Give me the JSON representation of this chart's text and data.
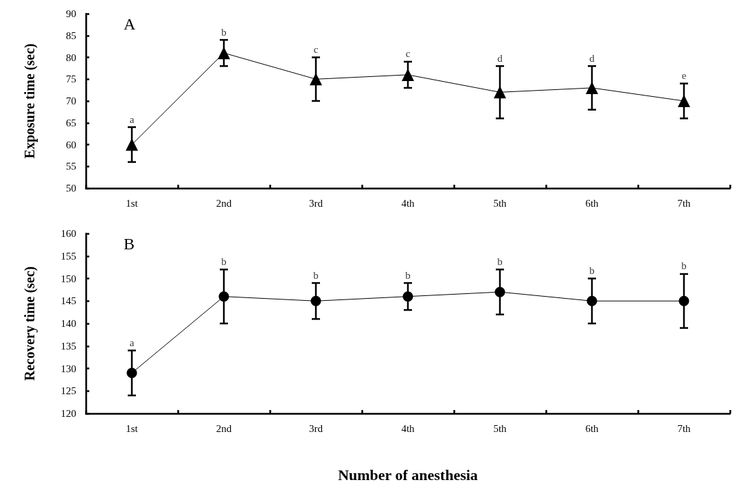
{
  "chart_data": [
    {
      "type": "line",
      "title": "A",
      "ylabel": "Exposure time (sec)",
      "categories": [
        "1st",
        "2nd",
        "3rd",
        "4th",
        "5th",
        "6th",
        "7th"
      ],
      "series": [
        {
          "color": "#000000",
          "values": [
            60,
            81,
            75,
            76,
            72,
            73,
            70
          ],
          "errors": [
            [
              56,
              64
            ],
            [
              78,
              84
            ],
            [
              70,
              80
            ],
            [
              73,
              79
            ],
            [
              66,
              78
            ],
            [
              68,
              78
            ],
            [
              66,
              74
            ]
          ]
        }
      ],
      "ylim": [
        50,
        90
      ],
      "yticks": [
        50,
        55,
        60,
        65,
        70,
        75,
        80,
        85,
        90
      ],
      "marker": "triangle",
      "line_style": "solid",
      "grid": false,
      "annotations": [
        {
          "text": "a",
          "x": "1st",
          "y": 64
        },
        {
          "text": "b",
          "x": "2nd",
          "y": 84
        },
        {
          "text": "c",
          "x": "3rd",
          "y": 80
        },
        {
          "text": "c",
          "x": "4th",
          "y": 79
        },
        {
          "text": "d",
          "x": "5th",
          "y": 78
        },
        {
          "text": "d",
          "x": "6th",
          "y": 78
        },
        {
          "text": "e",
          "x": "7th",
          "y": 74
        }
      ]
    },
    {
      "type": "line",
      "title": "B",
      "ylabel": "Recovery time (sec)",
      "xlabel": "Number of anesthesia",
      "categories": [
        "1st",
        "2nd",
        "3rd",
        "4th",
        "5th",
        "6th",
        "7th"
      ],
      "series": [
        {
          "color": "#000000",
          "values": [
            129,
            146,
            145,
            146,
            147,
            145,
            145
          ],
          "errors": [
            [
              124,
              134
            ],
            [
              140,
              152
            ],
            [
              141,
              149
            ],
            [
              143,
              149
            ],
            [
              142,
              152
            ],
            [
              140,
              150
            ],
            [
              139,
              151
            ]
          ]
        }
      ],
      "ylim": [
        120,
        160
      ],
      "yticks": [
        120,
        125,
        130,
        135,
        140,
        145,
        150,
        155,
        160
      ],
      "marker": "circle",
      "line_style": "solid",
      "grid": false,
      "annotations": [
        {
          "text": "a",
          "x": "1st",
          "y": 134
        },
        {
          "text": "b",
          "x": "2nd",
          "y": 152
        },
        {
          "text": "b",
          "x": "3rd",
          "y": 149
        },
        {
          "text": "b",
          "x": "4th",
          "y": 149
        },
        {
          "text": "b",
          "x": "5th",
          "y": 152
        },
        {
          "text": "b",
          "x": "6th",
          "y": 150
        },
        {
          "text": "b",
          "x": "7th",
          "y": 151
        }
      ]
    }
  ]
}
